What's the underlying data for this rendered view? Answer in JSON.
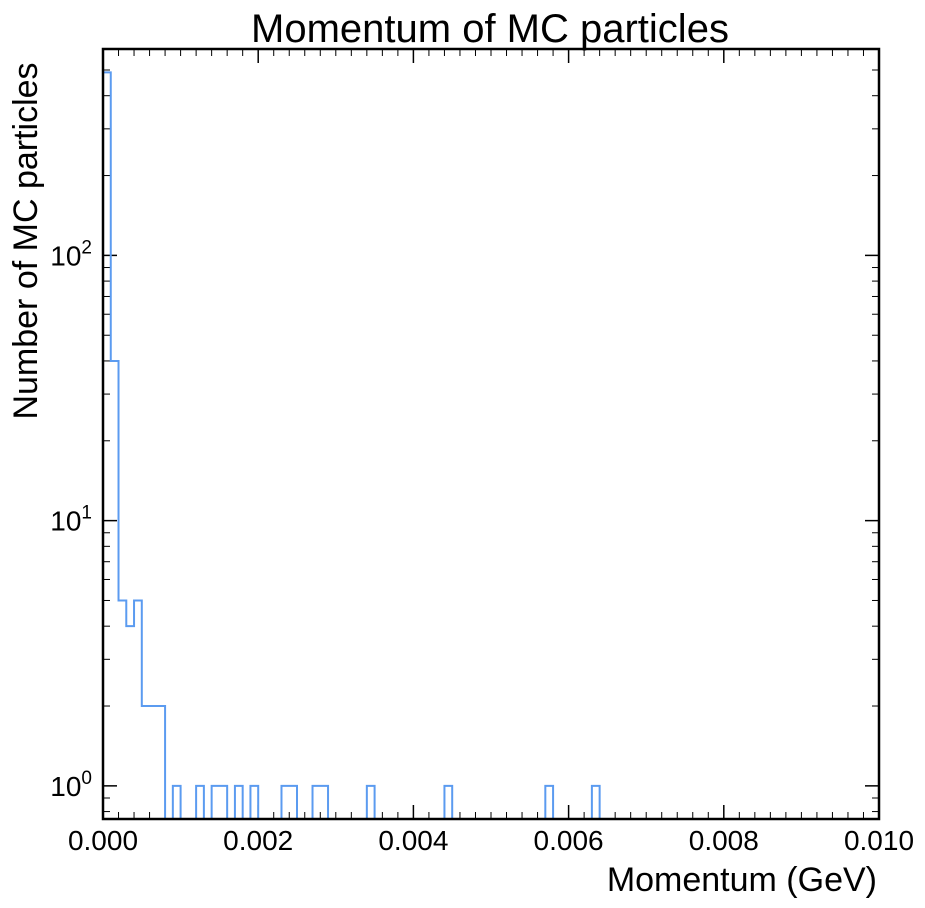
{
  "chart_data": {
    "type": "histogram",
    "title": "Momentum of MC particles",
    "xlabel": "Momentum (GeV)",
    "ylabel": "Number of MC particles",
    "xlim": [
      0,
      0.01
    ],
    "ylim": [
      0.75,
      600
    ],
    "yscale": "log",
    "x_tick_labels": [
      "0.000",
      "0.002",
      "0.004",
      "0.006",
      "0.008",
      "0.010"
    ],
    "x_ticks": [
      0,
      0.002,
      0.004,
      0.006,
      0.008,
      0.01
    ],
    "y_ticks": [
      {
        "value": 1,
        "base": "10",
        "exp": "0"
      },
      {
        "value": 10,
        "base": "10",
        "exp": "1"
      },
      {
        "value": 100,
        "base": "10",
        "exp": "2"
      }
    ],
    "bin_width": 0.0001,
    "counts": [
      490,
      40,
      5,
      4,
      5,
      2,
      2,
      2,
      0,
      1,
      0,
      0,
      1,
      0,
      1,
      1,
      0,
      1,
      0,
      1,
      0,
      0,
      0,
      1,
      1,
      0,
      0,
      1,
      1,
      0,
      0,
      0,
      0,
      0,
      1,
      0,
      0,
      0,
      0,
      0,
      0,
      0,
      0,
      0,
      1,
      0,
      0,
      0,
      0,
      0,
      0,
      0,
      0,
      0,
      0,
      0,
      0,
      1,
      0,
      0,
      0,
      0,
      0,
      1,
      0,
      0,
      0,
      0,
      0,
      0,
      0,
      0,
      0,
      0,
      0,
      0,
      0,
      0,
      0,
      0,
      0,
      0,
      0,
      0,
      0,
      0,
      0,
      0,
      0,
      0,
      0,
      0,
      0,
      0,
      0,
      0,
      0,
      0,
      0,
      0
    ],
    "line_color": "#5b9bf0",
    "grid": false,
    "legend": "none"
  }
}
